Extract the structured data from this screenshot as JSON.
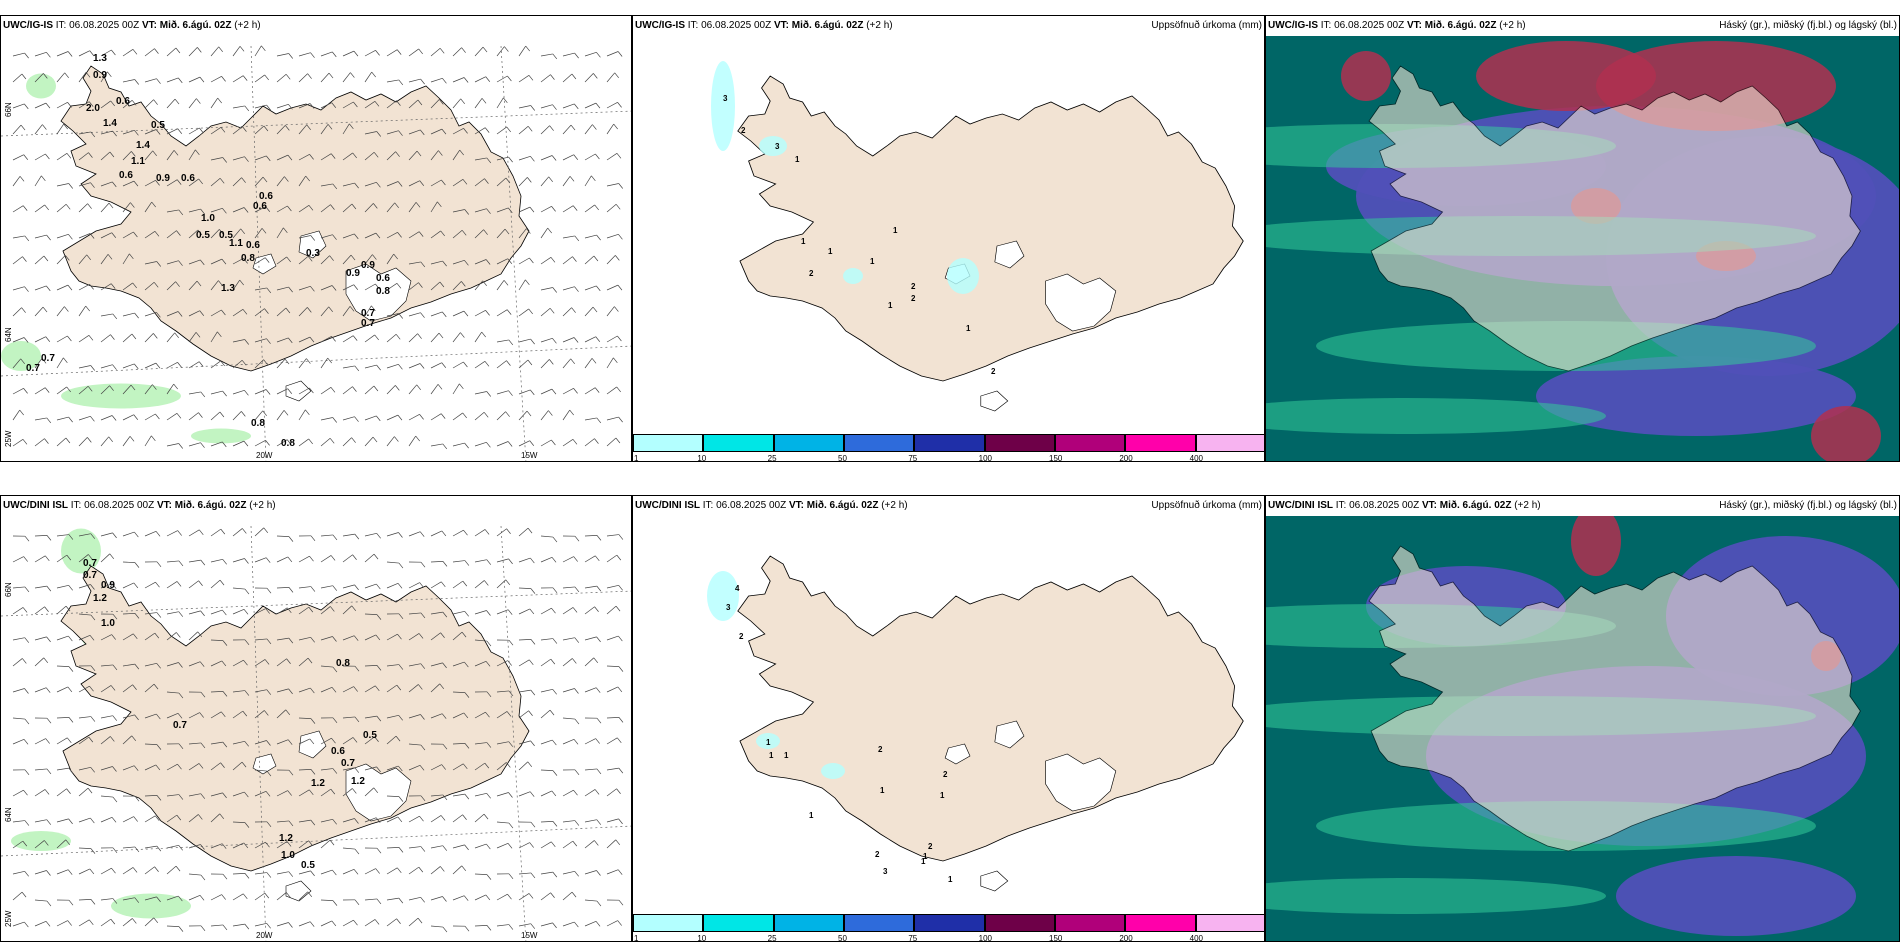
{
  "rows": [
    {
      "model": "UWC/IG-IS",
      "it_label": "IT:",
      "it_value": "06.08.2025 00Z",
      "vt_label": "VT:",
      "vt_value": "Mið. 6.ágú. 02Z",
      "lead": "(+2 h)",
      "precip_title": "Uppsöfnuð úrkoma (mm)",
      "cloud_title": "Háský (gr.), miðský (fj.bl.) og lágský (bl.)",
      "wind_labels": [
        "1.3",
        "0.9",
        "0.6",
        "2.0",
        "1.4",
        "0.5",
        "1.4",
        "1.1",
        "0.6",
        "0.9",
        "0.6",
        "0.6",
        "0.6",
        "0.5",
        "0.5",
        "1.1",
        "0.6",
        "0.8",
        "0.3",
        "1.3",
        "0.9",
        "0.6",
        "0.8",
        "0.7",
        "0.7",
        "0.7",
        "0.7",
        "0.8",
        "0.8",
        "0.9",
        "1.0"
      ],
      "precip_labels": [
        "3",
        "2",
        "3",
        "1",
        "1",
        "1",
        "1",
        "2",
        "1",
        "2",
        "2",
        "1",
        "1",
        "2"
      ],
      "lon_labels": [
        "20W",
        "15W"
      ],
      "lat_labels": [
        "66N",
        "64N",
        "25W"
      ]
    },
    {
      "model": "UWC/DINI ISL",
      "it_label": "IT:",
      "it_value": "06.08.2025 00Z",
      "vt_label": "VT:",
      "vt_value": "Mið. 6.ágú. 02Z",
      "lead": "(+2 h)",
      "precip_title": "Uppsöfnuð úrkoma (mm)",
      "cloud_title": "Háský (gr.), miðský (fj.bl.) og lágský (bl.)",
      "wind_labels": [
        "0.7",
        "0.7",
        "0.9",
        "1.2",
        "1.0",
        "0.8",
        "0.7",
        "0.5",
        "0.6",
        "0.7",
        "1.2",
        "1.2",
        "1.2",
        "1.0",
        "0.5"
      ],
      "precip_labels": [
        "4",
        "3",
        "2",
        "1",
        "1",
        "1",
        "2",
        "2",
        "1",
        "1",
        "1",
        "2",
        "2",
        "1",
        "1",
        "3",
        "1"
      ],
      "lon_labels": [
        "20W",
        "15W"
      ],
      "lat_labels": [
        "66N",
        "64N",
        "25W"
      ]
    }
  ],
  "legend": {
    "ticks": [
      "1",
      "10",
      "25",
      "50",
      "75",
      "100",
      "150",
      "200",
      "400"
    ],
    "colors": [
      "#b3ffff",
      "#00e6e6",
      "#00b3e6",
      "#2e6bdb",
      "#1f2fa8",
      "#6e0048",
      "#b0007a",
      "#ff00aa",
      "#f7b3f0"
    ]
  },
  "colors": {
    "land": "#f2e3d3",
    "wet": "#b7f2b7",
    "glacier": "#ffffff",
    "cloud_high": "#b03050",
    "cloud_mid": "#5050b8",
    "cloud_low": "#006666"
  }
}
